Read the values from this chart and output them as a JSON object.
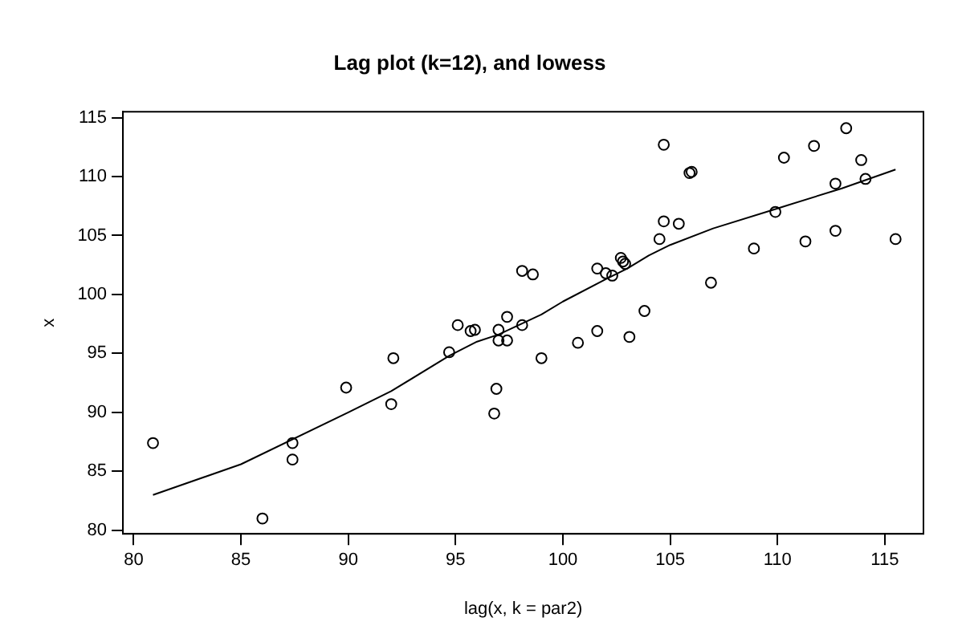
{
  "chart_data": {
    "type": "scatter",
    "title": "Lag plot (k=12), and lowess",
    "xlabel": "lag(x, k = par2)",
    "ylabel": "x",
    "xlim": [
      79.5,
      116.8
    ],
    "ylim": [
      79.7,
      115.5
    ],
    "xticks": [
      80,
      85,
      90,
      95,
      100,
      105,
      110,
      115
    ],
    "yticks": [
      80,
      85,
      90,
      95,
      100,
      105,
      110,
      115
    ],
    "grid": false,
    "legend": false,
    "series": [
      {
        "type": "scatter",
        "color": "#000000",
        "marker": "circle",
        "x": [
          80.9,
          86.0,
          87.4,
          87.4,
          89.9,
          92.0,
          92.1,
          94.7,
          95.1,
          95.7,
          95.9,
          96.8,
          96.9,
          97.0,
          97.0,
          97.4,
          97.4,
          98.1,
          98.1,
          98.6,
          99.0,
          100.7,
          101.6,
          101.6,
          102.0,
          102.3,
          102.7,
          102.8,
          102.9,
          103.1,
          103.8,
          104.5,
          104.7,
          104.7,
          105.4,
          105.9,
          106.0,
          106.9,
          108.9,
          109.9,
          110.3,
          111.3,
          111.7,
          112.7,
          112.7,
          113.2,
          113.9,
          114.1,
          115.5
        ],
        "values": [
          87.4,
          81.0,
          87.4,
          86.0,
          92.1,
          90.7,
          94.6,
          95.1,
          97.4,
          96.9,
          97.0,
          89.9,
          92.0,
          97.0,
          96.1,
          98.1,
          96.1,
          97.4,
          102.0,
          101.7,
          94.6,
          95.9,
          96.9,
          102.2,
          101.8,
          101.6,
          103.1,
          102.8,
          102.6,
          96.4,
          98.6,
          104.7,
          112.7,
          106.2,
          106.0,
          110.3,
          110.4,
          101.0,
          103.9,
          107.0,
          111.6,
          104.5,
          112.6,
          109.4,
          105.4,
          114.1,
          111.4,
          109.8,
          104.7
        ]
      },
      {
        "type": "line",
        "color": "#000000",
        "marker": "none",
        "line_style": "solid",
        "x": [
          80.9,
          85,
          90,
          92,
          94.7,
          96,
          97,
          99,
          100,
          102,
          103,
          104,
          105,
          107,
          110,
          113,
          115.5
        ],
        "values": [
          83.0,
          85.6,
          90.0,
          91.8,
          94.8,
          96.0,
          96.6,
          98.3,
          99.4,
          101.3,
          102.2,
          103.3,
          104.2,
          105.6,
          107.3,
          109.0,
          110.6
        ]
      }
    ]
  }
}
